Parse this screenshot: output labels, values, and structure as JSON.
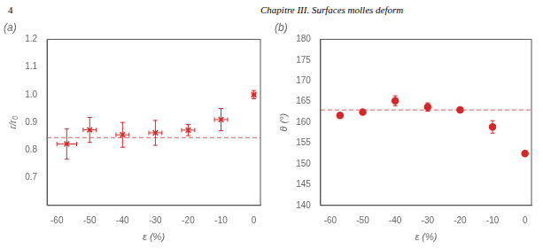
{
  "chart_data": [
    {
      "type": "scatter",
      "title": "(a)",
      "x_label": "ε (%)",
      "y_label": "r/r₀",
      "annotations": [
        "4",
        "Chapitre III.  Surfaces molles deform"
      ],
      "grid": false,
      "xlim": [
        -63,
        2
      ],
      "xticks": [
        -60,
        -50,
        -40,
        -30,
        -20,
        -10,
        0
      ],
      "ylim": [
        0.6,
        1.2
      ],
      "yticks": [
        0.7,
        0.8,
        0.9,
        {
          "value": 1.0,
          "label": "1.0"
        },
        1.1,
        1.2
      ],
      "series": [
        {
          "type": "scatter",
          "marker": "x",
          "color": "#d62728",
          "x": [
            -57,
            -50,
            -40,
            -30,
            -20,
            -10,
            0
          ],
          "values": [
            0.822,
            0.873,
            0.855,
            0.862,
            0.872,
            0.91,
            1.0
          ],
          "xerr": [
            3,
            2,
            2,
            2,
            2,
            2,
            0.5
          ],
          "yerr": [
            0.055,
            0.045,
            0.045,
            0.045,
            0.02,
            0.04,
            0.015
          ]
        },
        {
          "type": "hline",
          "line_style": "dashed",
          "color": "#e08080",
          "values": [
            0.845
          ]
        }
      ]
    },
    {
      "type": "scatter",
      "title": "(b)",
      "x_label": "ε (%)",
      "y_label": "θ (°)",
      "grid": false,
      "xlim": [
        -63,
        2
      ],
      "xticks": [
        -60,
        -50,
        -40,
        -30,
        -20,
        -10,
        0
      ],
      "ylim": [
        140,
        180
      ],
      "yticks": [
        140,
        145,
        150,
        155,
        160,
        165,
        170,
        175,
        180
      ],
      "series": [
        {
          "type": "scatter",
          "marker": "o",
          "color": "#d62728",
          "x": [
            -57,
            -50,
            -40,
            -30,
            -20,
            -10,
            0
          ],
          "values": [
            161.7,
            162.5,
            165.2,
            163.7,
            163.0,
            158.9,
            152.5
          ],
          "yerr": [
            0.5,
            0.5,
            1.2,
            1.0,
            0.5,
            1.5,
            0.5
          ]
        },
        {
          "type": "hline",
          "line_style": "dashed",
          "color": "#e08080",
          "values": [
            163.0
          ]
        }
      ]
    }
  ]
}
